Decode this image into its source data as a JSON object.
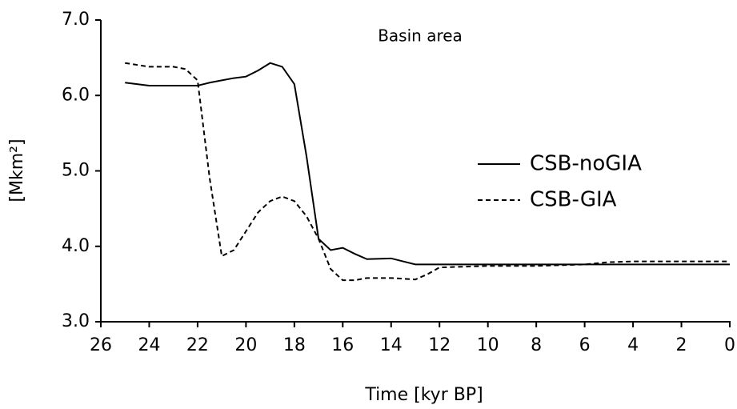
{
  "chart_data": {
    "type": "line",
    "title": "Basin area",
    "xlabel": "Time [kyr BP]",
    "ylabel": "[Mkm²]",
    "x": [
      25,
      24,
      23,
      22.5,
      22,
      21.5,
      21,
      20.5,
      20,
      19.5,
      19,
      18.5,
      18,
      17.5,
      17,
      16.5,
      16,
      15.5,
      15,
      14,
      13,
      12.5,
      12,
      10,
      8,
      6,
      5,
      4,
      2,
      0
    ],
    "series": [
      {
        "name": "CSB-noGIA",
        "color": "#000000",
        "dash": "solid",
        "values": [
          6.17,
          6.13,
          6.13,
          6.13,
          6.13,
          6.17,
          6.2,
          6.23,
          6.25,
          6.33,
          6.43,
          6.38,
          6.15,
          5.2,
          4.1,
          3.95,
          3.98,
          3.9,
          3.83,
          3.84,
          3.76,
          3.76,
          3.76,
          3.76,
          3.76,
          3.76,
          3.76,
          3.76,
          3.76,
          3.76
        ]
      },
      {
        "name": "CSB-GIA",
        "color": "#000000",
        "dash": "dashed",
        "values": [
          6.43,
          6.38,
          6.38,
          6.35,
          6.2,
          4.9,
          3.87,
          3.95,
          4.2,
          4.45,
          4.6,
          4.66,
          4.6,
          4.4,
          4.1,
          3.7,
          3.55,
          3.55,
          3.58,
          3.58,
          3.56,
          3.63,
          3.72,
          3.74,
          3.74,
          3.76,
          3.79,
          3.8,
          3.8,
          3.8
        ]
      }
    ],
    "xlim": [
      26,
      0
    ],
    "xticks": [
      26,
      24,
      22,
      20,
      18,
      16,
      14,
      12,
      10,
      8,
      6,
      4,
      2,
      0
    ],
    "ylim": [
      3,
      7
    ],
    "yticks": [
      {
        "value": 3,
        "label": "3.0"
      },
      {
        "value": 4,
        "label": "4.0"
      },
      {
        "value": 5,
        "label": "5.0"
      },
      {
        "value": 6,
        "label": "6.0"
      },
      {
        "value": 7,
        "label": "7.0"
      }
    ],
    "grid": false
  }
}
